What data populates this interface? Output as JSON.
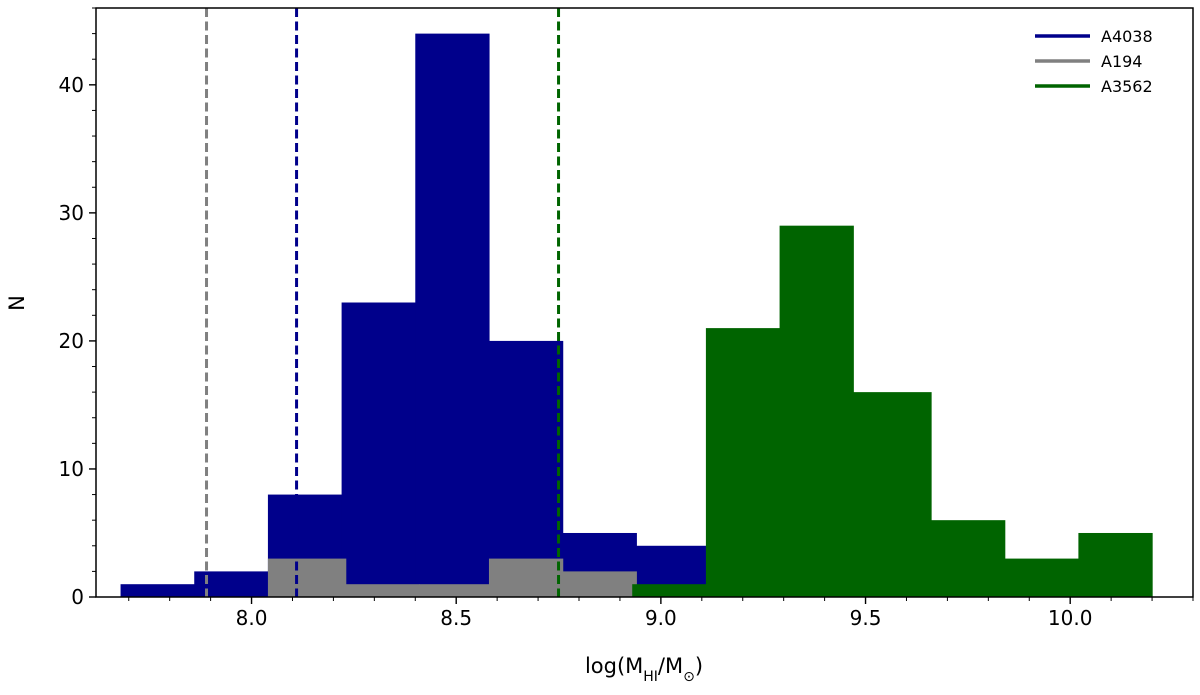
{
  "chart_data": {
    "type": "bar",
    "title": "",
    "xlabel": {
      "prefix": "log(M",
      "sub1": "HI",
      "mid": "/M",
      "sub2": "⊙",
      "suffix": ")"
    },
    "ylabel": "N",
    "xlim": [
      7.62,
      10.3
    ],
    "ylim": [
      0,
      46
    ],
    "x_ticks": [
      8.0,
      8.5,
      9.0,
      9.5,
      10.0
    ],
    "x_tick_labels": [
      "8.0",
      "8.5",
      "9.0",
      "9.5",
      "10.0"
    ],
    "y_ticks": [
      0,
      10,
      20,
      30,
      40
    ],
    "y_tick_labels": [
      "0",
      "10",
      "20",
      "30",
      "40"
    ],
    "grid": false,
    "legend_position": "top-right",
    "series": [
      {
        "name": "A4038",
        "color": "#00008b",
        "bins": [
          {
            "x0": 7.68,
            "x1": 7.86,
            "count": 1
          },
          {
            "x0": 7.86,
            "x1": 8.04,
            "count": 2
          },
          {
            "x0": 8.04,
            "x1": 8.22,
            "count": 8
          },
          {
            "x0": 8.22,
            "x1": 8.4,
            "count": 23
          },
          {
            "x0": 8.4,
            "x1": 8.58,
            "count": 44
          },
          {
            "x0": 8.58,
            "x1": 8.76,
            "count": 20
          },
          {
            "x0": 8.76,
            "x1": 8.94,
            "count": 5
          },
          {
            "x0": 8.94,
            "x1": 9.12,
            "count": 4
          }
        ],
        "reference_line": 8.11
      },
      {
        "name": "A194",
        "color": "#808080",
        "bins": [
          {
            "x0": 8.04,
            "x1": 8.23,
            "count": 3
          },
          {
            "x0": 8.23,
            "x1": 8.41,
            "count": 1
          },
          {
            "x0": 8.41,
            "x1": 8.58,
            "count": 1
          },
          {
            "x0": 8.58,
            "x1": 8.76,
            "count": 3
          },
          {
            "x0": 8.76,
            "x1": 8.94,
            "count": 2
          }
        ],
        "reference_line": 7.89
      },
      {
        "name": "A3562",
        "color": "#006400",
        "bins": [
          {
            "x0": 8.93,
            "x1": 9.11,
            "count": 1
          },
          {
            "x0": 9.11,
            "x1": 9.29,
            "count": 21
          },
          {
            "x0": 9.29,
            "x1": 9.47,
            "count": 29
          },
          {
            "x0": 9.47,
            "x1": 9.66,
            "count": 16
          },
          {
            "x0": 9.66,
            "x1": 9.84,
            "count": 6
          },
          {
            "x0": 9.84,
            "x1": 10.02,
            "count": 3
          },
          {
            "x0": 10.02,
            "x1": 10.2,
            "count": 5
          }
        ],
        "reference_line": 8.75
      }
    ],
    "draw_order": [
      "A4038",
      "A194",
      "A3562"
    ],
    "line_draw_order": [
      "A194",
      "A4038",
      "A3562"
    ]
  }
}
